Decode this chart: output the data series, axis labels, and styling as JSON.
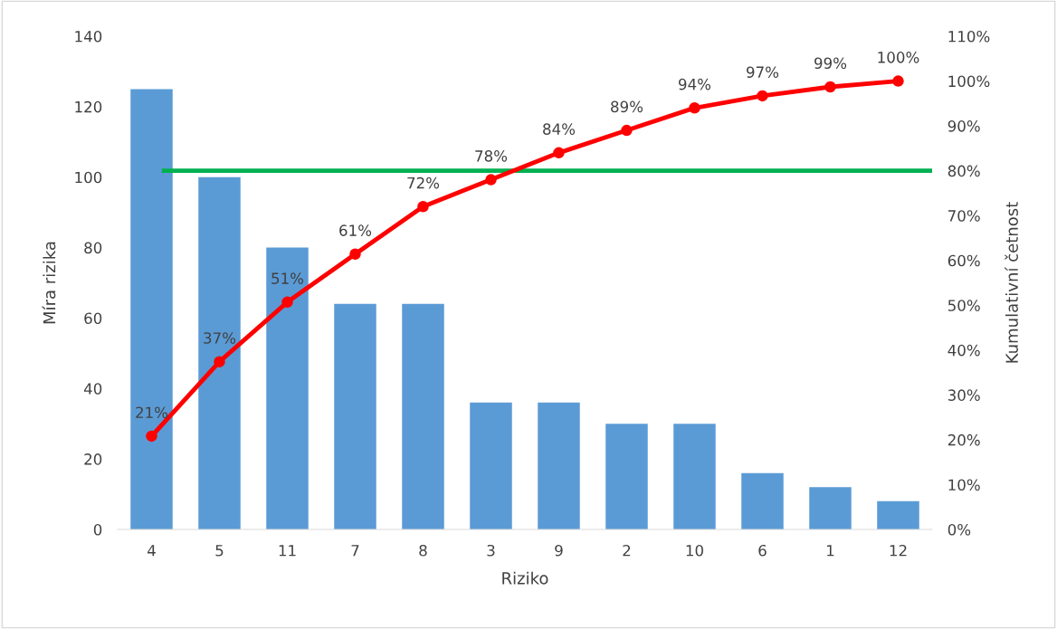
{
  "chart_data": {
    "type": "bar",
    "xlabel": "Riziko",
    "ylabel": "Míra rizika",
    "y2label": "Kumulativní četnost",
    "categories": [
      "4",
      "5",
      "11",
      "7",
      "8",
      "3",
      "9",
      "2",
      "10",
      "6",
      "1",
      "12"
    ],
    "series": [
      {
        "color": "#5b9bd5",
        "values": [
          125,
          100,
          80,
          64,
          64,
          36,
          36,
          30,
          30,
          16,
          12,
          8
        ]
      },
      {
        "type": "line",
        "axis": "y2",
        "color": "#ff0000",
        "marker": "circle",
        "values": [
          20.8,
          37.4,
          50.7,
          61.4,
          72.0,
          78.0,
          84.0,
          89.0,
          94.0,
          96.7,
          98.7,
          100
        ],
        "value_labels": [
          "21%",
          "37%",
          "51%",
          "61%",
          "72%",
          "78%",
          "84%",
          "89%",
          "94%",
          "97%",
          "99%",
          "100%"
        ]
      }
    ],
    "ylim": [
      0,
      140
    ],
    "yticks": [
      0,
      20,
      40,
      60,
      80,
      100,
      120,
      140
    ],
    "y2lim": [
      0,
      110
    ],
    "y2ticks": [
      {
        "value": 0,
        "label": "0%"
      },
      {
        "value": 10,
        "label": "10%"
      },
      {
        "value": 20,
        "label": "20%"
      },
      {
        "value": 30,
        "label": "30%"
      },
      {
        "value": 40,
        "label": "40%"
      },
      {
        "value": 50,
        "label": "50%"
      },
      {
        "value": 60,
        "label": "60%"
      },
      {
        "value": 70,
        "label": "70%"
      },
      {
        "value": 80,
        "label": "80%"
      },
      {
        "value": 90,
        "label": "90%"
      },
      {
        "value": 100,
        "label": "100%"
      },
      {
        "value": 110,
        "label": "110%"
      }
    ],
    "ref_lines": [
      {
        "axis": "y2",
        "value": 80,
        "color": "#00b050"
      }
    ],
    "grid": false
  }
}
